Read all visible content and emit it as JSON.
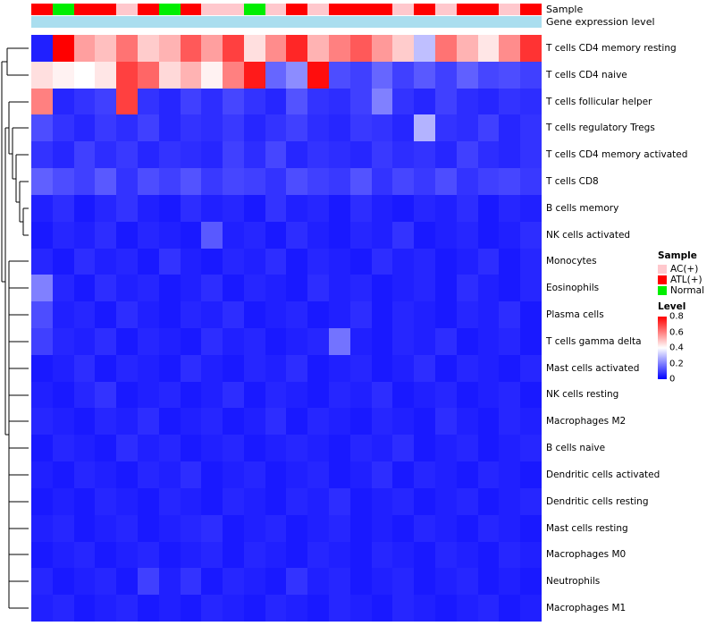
{
  "annotation_labels": {
    "sample": "Sample",
    "expression": "Gene expression level"
  },
  "legend": {
    "sample_title": "Sample",
    "sample_items": [
      {
        "label": "AC(+)",
        "color": "#FFC8CD"
      },
      {
        "label": "ATL(+)",
        "color": "#FF0000"
      },
      {
        "label": "Normal",
        "color": "#00EE00"
      }
    ],
    "level_title": "Level",
    "level_ticks": [
      "0.8",
      "0.6",
      "0.4",
      "0.2",
      "0"
    ]
  },
  "chart_data": {
    "type": "heatmap",
    "title": "",
    "n_columns": 24,
    "rows": [
      "T cells CD4 memory resting",
      "T cells CD4 naive",
      "T cells follicular helper",
      "T cells regulatory  Tregs",
      "T cells CD4 memory activated",
      "T cells CD8",
      "B cells memory",
      "NK cells activated",
      "Monocytes",
      "Eosinophils",
      "Plasma cells",
      "T cells gamma delta",
      "Mast cells activated",
      "NK cells resting",
      "Macrophages M2",
      "B cells naive",
      "Dendritic cells activated",
      "Dendritic cells resting",
      "Mast cells resting",
      "Macrophages M0",
      "Neutrophils",
      "Macrophages M1"
    ],
    "column_sample_groups": [
      "ATL(+)",
      "Normal",
      "ATL(+)",
      "ATL(+)",
      "AC(+)",
      "ATL(+)",
      "Normal",
      "ATL(+)",
      "AC(+)",
      "AC(+)",
      "Normal",
      "AC(+)",
      "ATL(+)",
      "AC(+)",
      "ATL(+)",
      "ATL(+)",
      "ATL(+)",
      "AC(+)",
      "ATL(+)",
      "AC(+)",
      "ATL(+)",
      "ATL(+)",
      "AC(+)",
      "ATL(+)"
    ],
    "sample_group_colors": {
      "AC(+)": "#FFC8CD",
      "ATL(+)": "#FF0000",
      "Normal": "#00EE00"
    },
    "expression_bar_color": "#AADEEF",
    "colormap": {
      "low_color": "#0000FF",
      "mid_color": "#FFFFFF",
      "high_color": "#FF0000",
      "domain": [
        0,
        0.4,
        0.8
      ]
    },
    "legend_position": "right",
    "values": [
      [
        0.05,
        0.8,
        0.55,
        0.5,
        0.62,
        0.48,
        0.52,
        0.66,
        0.55,
        0.7,
        0.45,
        0.58,
        0.74,
        0.52,
        0.6,
        0.66,
        0.56,
        0.48,
        0.3,
        0.62,
        0.52,
        0.44,
        0.58,
        0.72
      ],
      [
        0.45,
        0.42,
        0.4,
        0.44,
        0.7,
        0.64,
        0.46,
        0.52,
        0.42,
        0.6,
        0.76,
        0.16,
        0.22,
        0.78,
        0.12,
        0.1,
        0.16,
        0.1,
        0.14,
        0.1,
        0.15,
        0.11,
        0.12,
        0.1
      ],
      [
        0.6,
        0.06,
        0.08,
        0.1,
        0.7,
        0.08,
        0.06,
        0.1,
        0.07,
        0.11,
        0.08,
        0.06,
        0.13,
        0.08,
        0.07,
        0.1,
        0.2,
        0.08,
        0.06,
        0.1,
        0.07,
        0.06,
        0.08,
        0.07
      ],
      [
        0.12,
        0.08,
        0.06,
        0.09,
        0.07,
        0.1,
        0.06,
        0.08,
        0.07,
        0.09,
        0.06,
        0.08,
        0.1,
        0.07,
        0.06,
        0.09,
        0.08,
        0.06,
        0.28,
        0.08,
        0.07,
        0.1,
        0.06,
        0.08
      ],
      [
        0.08,
        0.06,
        0.1,
        0.07,
        0.09,
        0.06,
        0.08,
        0.07,
        0.06,
        0.1,
        0.07,
        0.11,
        0.06,
        0.08,
        0.07,
        0.06,
        0.09,
        0.07,
        0.08,
        0.06,
        0.1,
        0.07,
        0.06,
        0.08
      ],
      [
        0.15,
        0.12,
        0.1,
        0.14,
        0.08,
        0.12,
        0.1,
        0.13,
        0.09,
        0.11,
        0.1,
        0.08,
        0.12,
        0.1,
        0.09,
        0.13,
        0.08,
        0.11,
        0.09,
        0.12,
        0.08,
        0.1,
        0.11,
        0.09
      ],
      [
        0.05,
        0.07,
        0.04,
        0.06,
        0.08,
        0.05,
        0.04,
        0.07,
        0.05,
        0.06,
        0.04,
        0.08,
        0.05,
        0.06,
        0.04,
        0.07,
        0.05,
        0.04,
        0.06,
        0.05,
        0.07,
        0.04,
        0.06,
        0.05
      ],
      [
        0.04,
        0.06,
        0.05,
        0.07,
        0.04,
        0.06,
        0.05,
        0.04,
        0.14,
        0.05,
        0.06,
        0.04,
        0.07,
        0.05,
        0.04,
        0.06,
        0.05,
        0.08,
        0.04,
        0.05,
        0.06,
        0.04,
        0.05,
        0.07
      ],
      [
        0.06,
        0.04,
        0.07,
        0.05,
        0.06,
        0.04,
        0.08,
        0.05,
        0.04,
        0.06,
        0.05,
        0.07,
        0.04,
        0.06,
        0.05,
        0.04,
        0.07,
        0.05,
        0.06,
        0.04,
        0.05,
        0.07,
        0.04,
        0.06
      ],
      [
        0.2,
        0.06,
        0.04,
        0.07,
        0.05,
        0.06,
        0.04,
        0.05,
        0.07,
        0.04,
        0.06,
        0.05,
        0.04,
        0.07,
        0.05,
        0.06,
        0.04,
        0.05,
        0.06,
        0.04,
        0.07,
        0.05,
        0.04,
        0.06
      ],
      [
        0.12,
        0.05,
        0.06,
        0.04,
        0.07,
        0.05,
        0.04,
        0.06,
        0.05,
        0.07,
        0.04,
        0.05,
        0.06,
        0.04,
        0.05,
        0.07,
        0.04,
        0.06,
        0.05,
        0.04,
        0.06,
        0.05,
        0.07,
        0.04
      ],
      [
        0.1,
        0.06,
        0.05,
        0.07,
        0.04,
        0.06,
        0.05,
        0.04,
        0.07,
        0.05,
        0.06,
        0.04,
        0.05,
        0.06,
        0.18,
        0.05,
        0.04,
        0.06,
        0.05,
        0.07,
        0.04,
        0.05,
        0.06,
        0.04
      ],
      [
        0.04,
        0.05,
        0.07,
        0.04,
        0.06,
        0.05,
        0.04,
        0.07,
        0.05,
        0.04,
        0.06,
        0.05,
        0.07,
        0.04,
        0.05,
        0.06,
        0.04,
        0.05,
        0.07,
        0.04,
        0.06,
        0.05,
        0.04,
        0.06
      ],
      [
        0.05,
        0.04,
        0.06,
        0.08,
        0.04,
        0.05,
        0.06,
        0.04,
        0.05,
        0.07,
        0.04,
        0.06,
        0.05,
        0.04,
        0.06,
        0.05,
        0.07,
        0.04,
        0.05,
        0.06,
        0.04,
        0.05,
        0.06,
        0.04
      ],
      [
        0.06,
        0.05,
        0.04,
        0.06,
        0.05,
        0.07,
        0.04,
        0.05,
        0.06,
        0.04,
        0.05,
        0.07,
        0.04,
        0.06,
        0.05,
        0.04,
        0.06,
        0.05,
        0.04,
        0.07,
        0.05,
        0.04,
        0.06,
        0.05
      ],
      [
        0.04,
        0.06,
        0.05,
        0.04,
        0.07,
        0.05,
        0.06,
        0.04,
        0.05,
        0.06,
        0.04,
        0.05,
        0.06,
        0.05,
        0.04,
        0.06,
        0.05,
        0.07,
        0.04,
        0.05,
        0.06,
        0.04,
        0.05,
        0.06
      ],
      [
        0.05,
        0.04,
        0.06,
        0.05,
        0.04,
        0.06,
        0.05,
        0.07,
        0.04,
        0.05,
        0.06,
        0.04,
        0.05,
        0.06,
        0.04,
        0.05,
        0.07,
        0.04,
        0.06,
        0.05,
        0.04,
        0.06,
        0.05,
        0.04
      ],
      [
        0.04,
        0.05,
        0.04,
        0.06,
        0.05,
        0.04,
        0.06,
        0.05,
        0.04,
        0.06,
        0.05,
        0.04,
        0.06,
        0.05,
        0.07,
        0.04,
        0.05,
        0.06,
        0.04,
        0.05,
        0.06,
        0.04,
        0.05,
        0.06
      ],
      [
        0.05,
        0.06,
        0.04,
        0.05,
        0.06,
        0.04,
        0.05,
        0.06,
        0.07,
        0.04,
        0.05,
        0.06,
        0.04,
        0.05,
        0.06,
        0.04,
        0.05,
        0.04,
        0.06,
        0.05,
        0.04,
        0.06,
        0.05,
        0.04
      ],
      [
        0.04,
        0.05,
        0.06,
        0.04,
        0.05,
        0.06,
        0.04,
        0.05,
        0.06,
        0.04,
        0.06,
        0.05,
        0.04,
        0.06,
        0.05,
        0.04,
        0.06,
        0.05,
        0.04,
        0.06,
        0.05,
        0.04,
        0.06,
        0.05
      ],
      [
        0.06,
        0.04,
        0.05,
        0.06,
        0.04,
        0.1,
        0.05,
        0.08,
        0.04,
        0.06,
        0.05,
        0.04,
        0.08,
        0.05,
        0.06,
        0.04,
        0.05,
        0.06,
        0.04,
        0.05,
        0.06,
        0.04,
        0.05,
        0.04
      ],
      [
        0.05,
        0.06,
        0.04,
        0.05,
        0.06,
        0.04,
        0.05,
        0.04,
        0.06,
        0.05,
        0.04,
        0.06,
        0.05,
        0.04,
        0.06,
        0.05,
        0.04,
        0.06,
        0.05,
        0.04,
        0.05,
        0.06,
        0.04,
        0.05
      ]
    ]
  }
}
